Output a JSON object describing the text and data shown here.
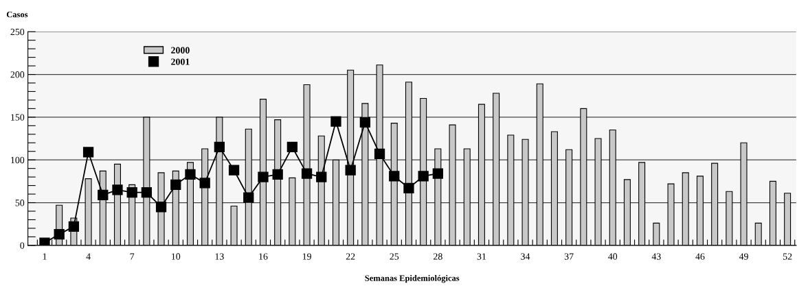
{
  "chart_data": {
    "type": "bar",
    "ylabel": "Casos",
    "xlabel": "Semanas Epidemiológicas",
    "categories": [
      "1",
      null,
      null,
      "4",
      null,
      null,
      "7",
      null,
      null,
      "10",
      null,
      null,
      "13",
      null,
      null,
      "16",
      null,
      null,
      "19",
      null,
      null,
      "22",
      null,
      null,
      "25",
      null,
      null,
      "28",
      null,
      null,
      "31",
      null,
      null,
      "34",
      null,
      null,
      "37",
      null,
      null,
      "40",
      null,
      null,
      "43",
      null,
      null,
      "46",
      null,
      null,
      "49",
      null,
      null,
      "52"
    ],
    "series": [
      {
        "name": "2000",
        "color": "#c8c8c8",
        "values": [
          null,
          47,
          32,
          78,
          87,
          95,
          71,
          150,
          85,
          87,
          97,
          113,
          150,
          46,
          136,
          171,
          147,
          79,
          188,
          128,
          100,
          205,
          166,
          211,
          143,
          191,
          172,
          113,
          141,
          113,
          165,
          178,
          129,
          124,
          189,
          133,
          112,
          160,
          125,
          135,
          77,
          97,
          26,
          72,
          85,
          81,
          96,
          63,
          120,
          26,
          75,
          61
        ]
      },
      {
        "name": "2001",
        "type": "line",
        "color": "#000000",
        "marker": "square",
        "values": [
          3,
          13,
          22,
          109,
          59,
          65,
          62,
          62,
          45,
          71,
          83,
          73,
          115,
          88,
          56,
          80,
          83,
          115,
          84,
          80,
          145,
          88,
          144,
          107,
          81,
          67,
          81,
          84,
          null,
          null,
          null,
          null,
          null,
          null,
          null,
          null,
          null,
          null,
          null,
          null,
          null,
          null,
          null,
          null,
          null,
          null,
          null,
          null,
          null,
          null,
          null,
          null
        ]
      }
    ],
    "ylim": [
      0,
      250
    ],
    "yticks": [
      0,
      {
        "value": 10,
        "label": null
      },
      {
        "value": 20,
        "label": null
      },
      {
        "value": 30,
        "label": null
      },
      {
        "value": 40,
        "label": null
      },
      50,
      {
        "value": 60,
        "label": null
      },
      {
        "value": 70,
        "label": null
      },
      {
        "value": 80,
        "label": null
      },
      {
        "value": 90,
        "label": null
      },
      100,
      {
        "value": 110,
        "label": null
      },
      {
        "value": 120,
        "label": null
      },
      {
        "value": 130,
        "label": null
      },
      {
        "value": 140,
        "label": null
      },
      150,
      {
        "value": 160,
        "label": null
      },
      {
        "value": 170,
        "label": null
      },
      {
        "value": 180,
        "label": null
      },
      {
        "value": 190,
        "label": null
      },
      200,
      {
        "value": 210,
        "label": null
      },
      {
        "value": 220,
        "label": null
      },
      {
        "value": 230,
        "label": null
      },
      {
        "value": 240,
        "label": null
      },
      250
    ],
    "grid": "y",
    "legend": "top left"
  }
}
